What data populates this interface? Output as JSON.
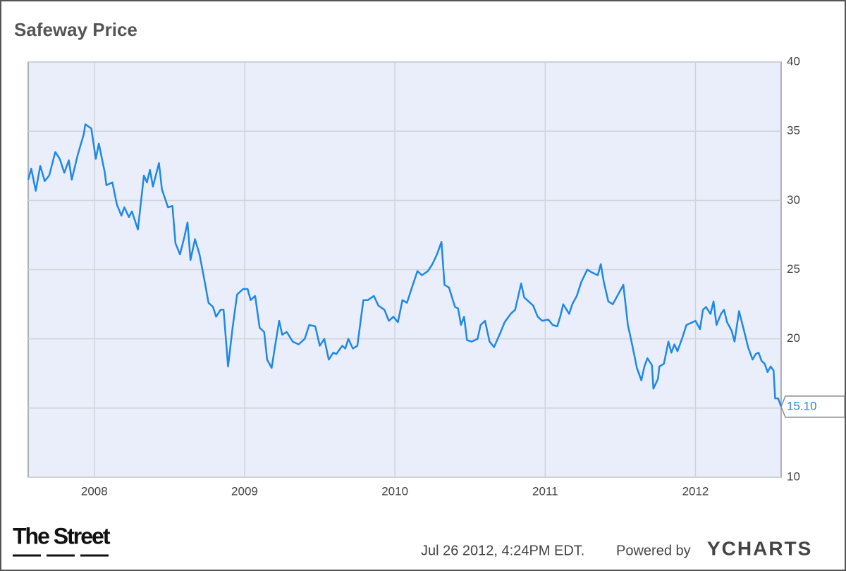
{
  "chart_data": {
    "type": "line",
    "title": "Safeway Price",
    "x": [
      2007.56,
      2007.58,
      2007.61,
      2007.64,
      2007.67,
      2007.7,
      2007.74,
      2007.77,
      2007.8,
      2007.83,
      2007.85,
      2007.89,
      2007.93,
      2007.94,
      2007.98,
      2008.01,
      2008.03,
      2008.07,
      2008.08,
      2008.12,
      2008.15,
      2008.18,
      2008.2,
      2008.23,
      2008.25,
      2008.29,
      2008.33,
      2008.35,
      2008.37,
      2008.39,
      2008.43,
      2008.45,
      2008.49,
      2008.52,
      2008.54,
      2008.57,
      2008.6,
      2008.62,
      2008.64,
      2008.67,
      2008.7,
      2008.73,
      2008.76,
      2008.79,
      2008.81,
      2008.84,
      2008.86,
      2008.89,
      2008.92,
      2008.95,
      2008.99,
      2009.02,
      2009.04,
      2009.07,
      2009.1,
      2009.13,
      2009.15,
      2009.18,
      2009.2,
      2009.23,
      2009.25,
      2009.28,
      2009.32,
      2009.36,
      2009.4,
      2009.43,
      2009.47,
      2009.5,
      2009.53,
      2009.56,
      2009.59,
      2009.61,
      2009.65,
      2009.67,
      2009.69,
      2009.72,
      2009.75,
      2009.79,
      2009.82,
      2009.86,
      2009.89,
      2009.93,
      2009.96,
      2009.99,
      2010.02,
      2010.05,
      2010.08,
      2010.11,
      2010.15,
      2010.18,
      2010.22,
      2010.25,
      2010.28,
      2010.31,
      2010.33,
      2010.36,
      2010.4,
      2010.42,
      2010.44,
      2010.46,
      2010.48,
      2010.51,
      2010.55,
      2010.57,
      2010.6,
      2010.63,
      2010.66,
      2010.7,
      2010.73,
      2010.77,
      2010.8,
      2010.84,
      2010.86,
      2010.89,
      2010.92,
      2010.95,
      2010.98,
      2011.02,
      2011.05,
      2011.08,
      2011.1,
      2011.12,
      2011.16,
      2011.18,
      2011.21,
      2011.24,
      2011.28,
      2011.31,
      2011.35,
      2011.37,
      2011.39,
      2011.42,
      2011.45,
      2011.48,
      2011.52,
      2011.55,
      2011.58,
      2011.61,
      2011.64,
      2011.66,
      2011.68,
      2011.71,
      2011.72,
      2011.75,
      2011.76,
      2011.79,
      2011.82,
      2011.84,
      2011.86,
      2011.88,
      2011.91,
      2011.94,
      2011.98,
      2012.0,
      2012.03,
      2012.05,
      2012.07,
      2012.1,
      2012.12,
      2012.14,
      2012.17,
      2012.19,
      2012.21,
      2012.24,
      2012.26,
      2012.29,
      2012.33,
      2012.35,
      2012.38,
      2012.4,
      2012.42,
      2012.44,
      2012.46,
      2012.48,
      2012.5,
      2012.52,
      2012.53,
      2012.55,
      2012.57
    ],
    "series": [
      {
        "name": "Safeway Price",
        "color": "#1f88e5",
        "values": [
          31.5,
          32.3,
          30.7,
          32.5,
          31.4,
          31.8,
          33.5,
          33.0,
          32.0,
          32.9,
          31.5,
          33.3,
          34.8,
          35.5,
          35.2,
          33.0,
          34.1,
          32.0,
          31.1,
          31.3,
          29.7,
          28.9,
          29.5,
          28.8,
          29.2,
          27.9,
          31.8,
          31.3,
          32.2,
          31.0,
          32.7,
          30.8,
          29.5,
          29.6,
          26.9,
          26.1,
          27.4,
          28.4,
          25.7,
          27.2,
          26.1,
          24.4,
          22.6,
          22.3,
          21.6,
          22.1,
          22.1,
          18.0,
          20.8,
          23.2,
          23.6,
          23.6,
          22.8,
          23.1,
          20.8,
          20.5,
          18.5,
          17.9,
          19.3,
          21.3,
          20.3,
          20.5,
          19.8,
          19.6,
          20.0,
          21.0,
          20.9,
          19.5,
          20.0,
          18.5,
          19.0,
          18.9,
          19.5,
          19.3,
          20.0,
          19.3,
          19.5,
          22.8,
          22.8,
          23.1,
          22.4,
          22.1,
          21.3,
          21.6,
          21.2,
          22.8,
          22.6,
          23.6,
          24.9,
          24.6,
          24.9,
          25.4,
          26.1,
          27.0,
          23.9,
          23.7,
          22.3,
          22.2,
          21.0,
          21.6,
          19.9,
          19.8,
          20.0,
          21.0,
          21.3,
          19.8,
          19.4,
          20.4,
          21.2,
          21.8,
          22.1,
          24.0,
          23.0,
          22.7,
          22.4,
          21.6,
          21.3,
          21.4,
          21.0,
          20.9,
          21.6,
          22.5,
          21.8,
          22.5,
          23.1,
          24.1,
          25.0,
          24.8,
          24.6,
          25.4,
          24.1,
          22.7,
          22.5,
          23.1,
          23.9,
          21.0,
          19.5,
          17.9,
          17.0,
          18.0,
          18.6,
          18.1,
          16.4,
          17.1,
          18.0,
          18.2,
          19.8,
          19.0,
          19.6,
          19.1,
          20.0,
          21.0,
          21.2,
          21.3,
          20.7,
          22.1,
          22.3,
          21.8,
          22.7,
          21.0,
          21.8,
          22.1,
          21.2,
          20.6,
          19.8,
          22.0,
          20.3,
          19.4,
          18.5,
          18.9,
          19.0,
          18.4,
          18.2,
          17.6,
          18.0,
          17.7,
          15.7,
          15.7,
          15.1
        ]
      }
    ],
    "annotations": [
      {
        "x": 2012.57,
        "y": 15.1,
        "label": "15.10"
      }
    ],
    "xlim": [
      2007.56,
      2012.57
    ],
    "xticks": [
      2008,
      2009,
      2010,
      2011,
      2012
    ],
    "ylim": [
      10,
      40
    ],
    "yticks": [
      10,
      15,
      20,
      25,
      30,
      35,
      40
    ],
    "grid": true
  },
  "footer": {
    "logo": "The Street",
    "timestamp": "Jul 26 2012, 4:24PM EDT.",
    "powered_by": "Powered by",
    "brand": "YCHARTS"
  }
}
